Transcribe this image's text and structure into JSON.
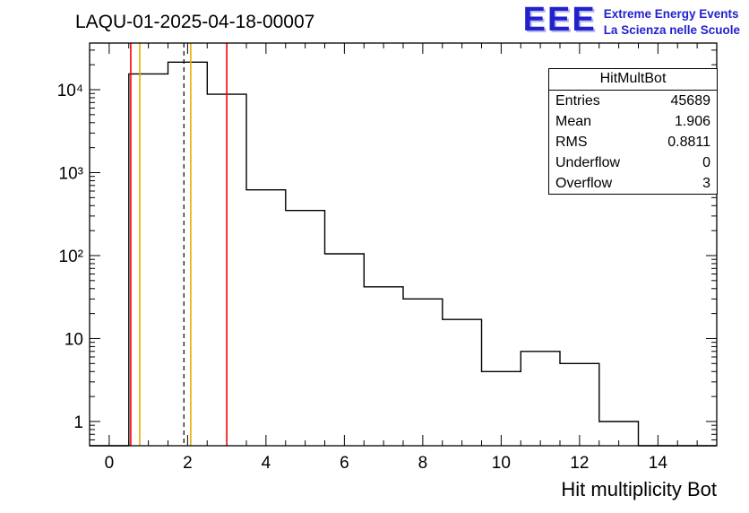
{
  "header": {
    "title": "LAQU-01-2025-04-18-00007"
  },
  "logo": {
    "letters": "EEE",
    "line1": "Extreme Energy Events",
    "line2": "La Scienza nelle Scuole",
    "color": "#2222cc"
  },
  "stats": {
    "title": "HitMultBot",
    "rows": [
      {
        "label": "Entries",
        "value": "45689"
      },
      {
        "label": "Mean",
        "value": "1.906"
      },
      {
        "label": "RMS",
        "value": "0.8811"
      },
      {
        "label": "Underflow",
        "value": "0"
      },
      {
        "label": "Overflow",
        "value": "3"
      }
    ]
  },
  "chart_data": {
    "type": "bar",
    "title": "LAQU-01-2025-04-18-00007",
    "xlabel": "Hit multiplicity Bot",
    "ylabel": "",
    "y_scale": "log",
    "x_range": [
      -0.5,
      15.5
    ],
    "y_range": [
      0.51,
      36500
    ],
    "grid": false,
    "legend": "none",
    "bin_width": 1,
    "bin_centers": [
      0,
      1,
      2,
      3,
      4,
      5,
      6,
      7,
      8,
      9,
      10,
      11,
      12,
      13,
      14,
      15
    ],
    "counts": [
      0,
      15500,
      21500,
      8800,
      620,
      350,
      105,
      42,
      30,
      17,
      4,
      7,
      5,
      1,
      0,
      0
    ],
    "hist_color": "#000000",
    "xticks": [
      0,
      2,
      4,
      6,
      8,
      10,
      12,
      14
    ],
    "yticks": [
      {
        "v": 1,
        "label": "1"
      },
      {
        "v": 10,
        "label": "10"
      },
      {
        "v": 100,
        "label": "10²"
      },
      {
        "v": 1000,
        "label": "10³"
      },
      {
        "v": 10000,
        "label": "10⁴"
      }
    ],
    "marker_lines": [
      {
        "x": 0.55,
        "color": "#ff0000",
        "dash": false
      },
      {
        "x": 0.78,
        "color": "#eaaa00",
        "dash": false
      },
      {
        "x": 1.906,
        "color": "#000000",
        "dash": true
      },
      {
        "x": 2.08,
        "color": "#eaaa00",
        "dash": false
      },
      {
        "x": 3.0,
        "color": "#ff0000",
        "dash": false
      }
    ]
  }
}
